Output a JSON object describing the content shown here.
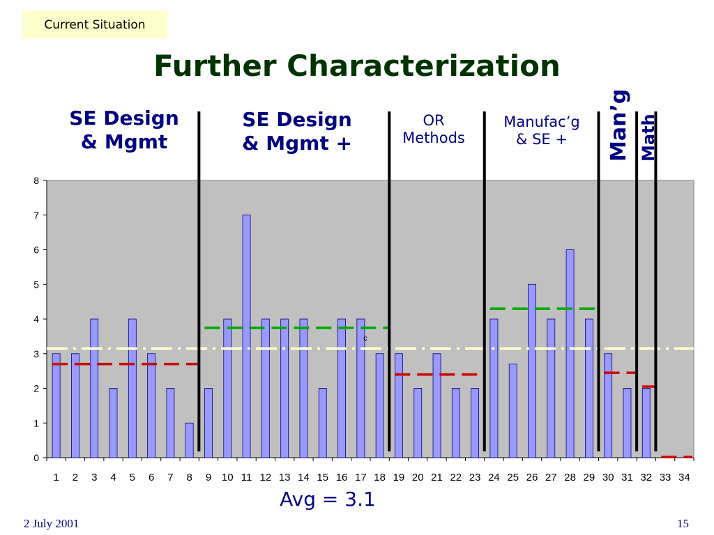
{
  "section_tag": "Current Situation",
  "title": "Further Characterization",
  "groups": {
    "g1": "SE Design\n& Mgmt",
    "g2": "SE Design\n& Mgmt +",
    "g3": "OR\nMethods",
    "g4": "Manufac’g\n& SE +",
    "g5": "Man’g",
    "g6": "Math"
  },
  "avg_label": "Avg = 3.1",
  "stray_label": "c",
  "footer": {
    "date": "2 July 2001",
    "page": "15"
  },
  "colors": {
    "plot_bg": "#c0c0c0",
    "bar_fill": "#9999ff",
    "bar_stroke": "#000080",
    "separator": "#000000",
    "avg_line": "#ffffcc",
    "group_mean_red": "#cc0000",
    "group_mean_green": "#00aa00"
  },
  "chart_data": {
    "type": "bar",
    "categories": [
      "1",
      "2",
      "3",
      "4",
      "5",
      "6",
      "7",
      "8",
      "9",
      "10",
      "11",
      "12",
      "13",
      "14",
      "15",
      "16",
      "17",
      "18",
      "19",
      "20",
      "21",
      "22",
      "23",
      "24",
      "25",
      "26",
      "27",
      "28",
      "29",
      "30",
      "31",
      "32",
      "33",
      "34"
    ],
    "values": [
      3,
      3,
      4,
      2,
      4,
      3,
      2,
      1,
      2,
      4,
      7,
      4,
      4,
      4,
      2,
      4,
      4,
      3,
      3,
      2,
      3,
      2,
      2,
      4,
      2.7,
      5,
      4,
      6,
      4,
      3,
      2,
      2,
      0,
      0
    ],
    "ylim": [
      0,
      8
    ],
    "yticks": [
      "0",
      "1",
      "2",
      "3",
      "4",
      "5",
      "6",
      "7",
      "8"
    ],
    "overall_average": 3.15,
    "group_separators_after": [
      8,
      18,
      23,
      29,
      31,
      32
    ],
    "group_means": [
      {
        "from": 1,
        "to": 8,
        "value": 2.7,
        "color": "red"
      },
      {
        "from": 9,
        "to": 18,
        "value": 3.75,
        "color": "green"
      },
      {
        "from": 19,
        "to": 23,
        "value": 2.4,
        "color": "red"
      },
      {
        "from": 24,
        "to": 29,
        "value": 4.3,
        "color": "green"
      },
      {
        "from": 30,
        "to": 31,
        "value": 2.45,
        "color": "red"
      },
      {
        "from": 32,
        "to": 32,
        "value": 2.05,
        "color": "red"
      },
      {
        "from": 33,
        "to": 34,
        "value": 0.02,
        "color": "red"
      }
    ],
    "grid": true
  }
}
